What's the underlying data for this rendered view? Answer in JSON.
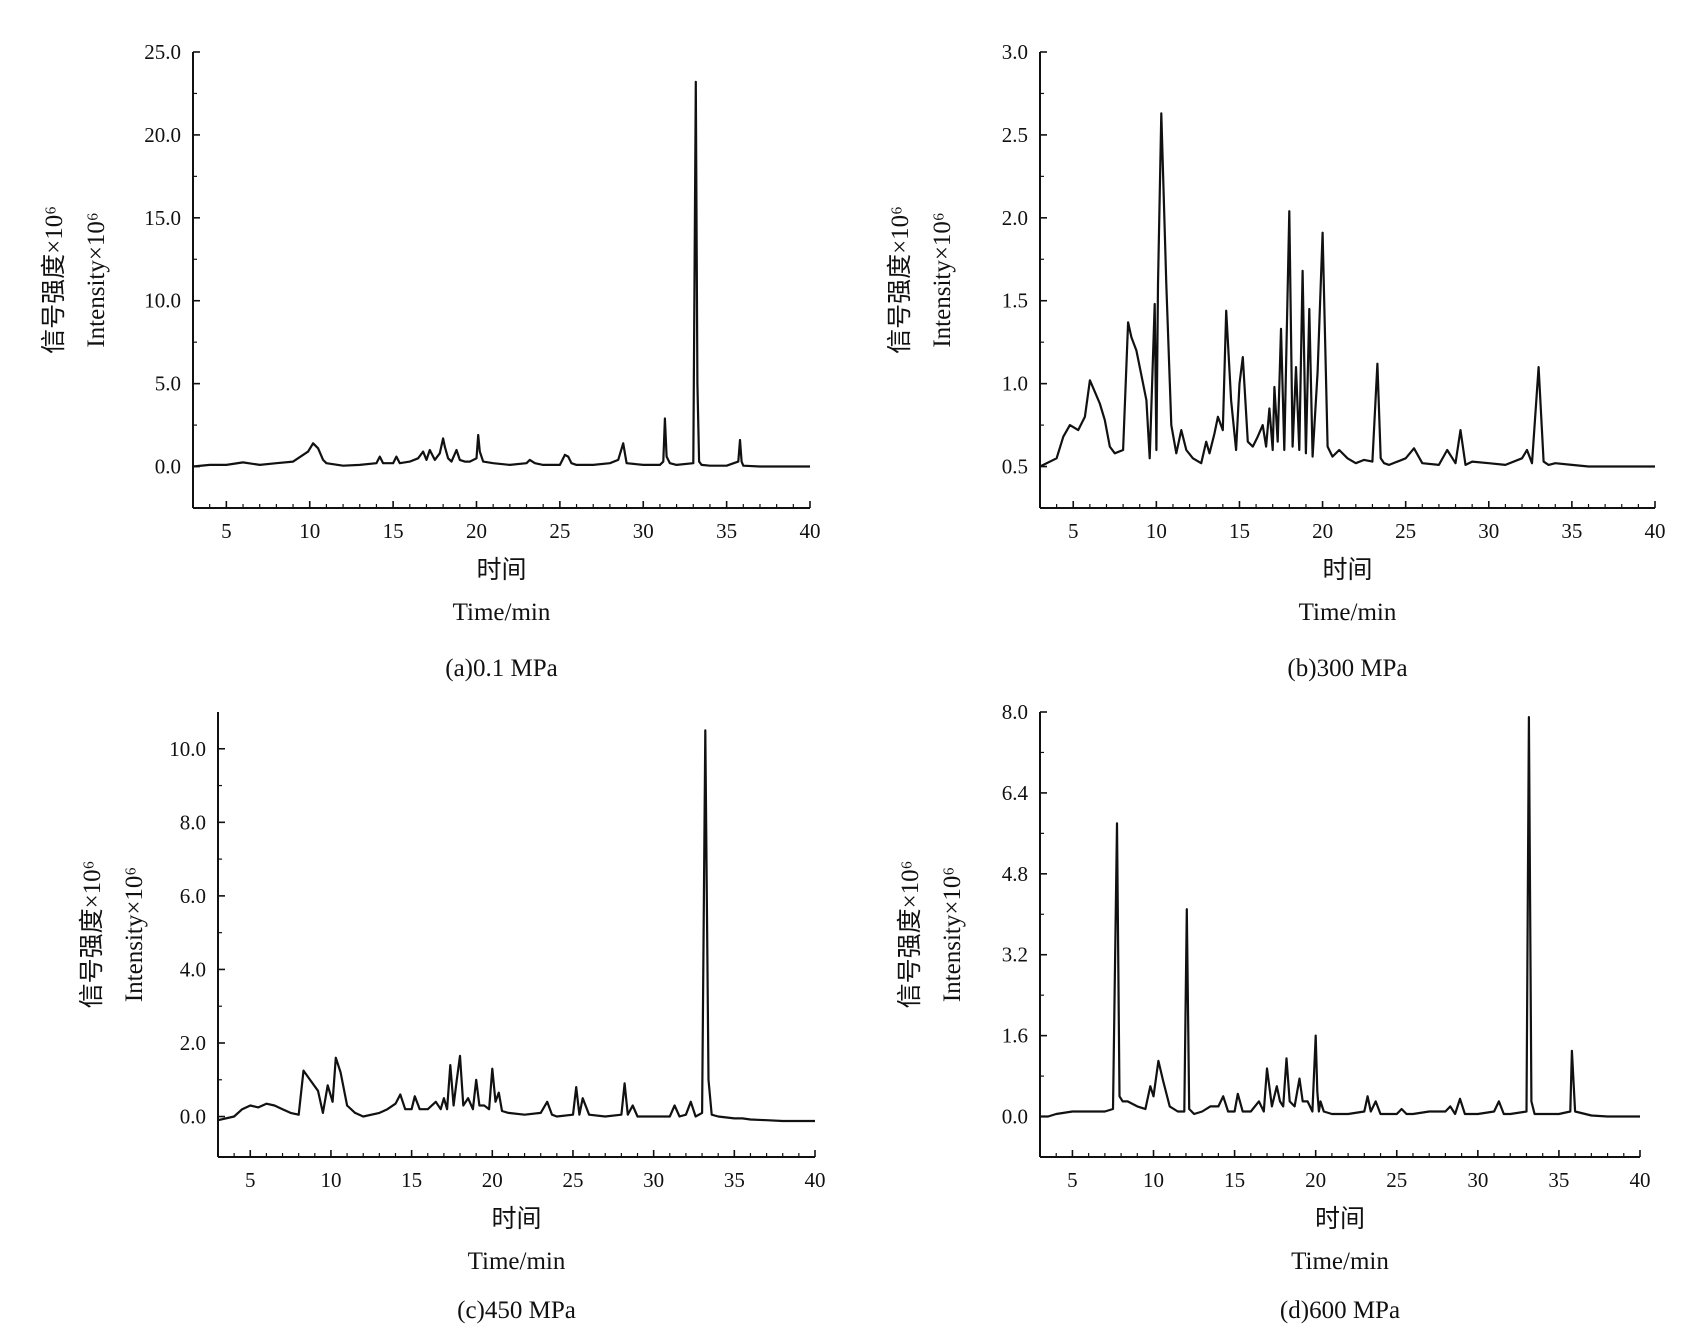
{
  "chart_data": [
    {
      "type": "line",
      "caption": "(a)0.1 MPa",
      "xlabel_zh": "时间",
      "xlabel_en": "Time/min",
      "ylabel_zh": "信号强度×10⁶",
      "ylabel_en": "Intensity×10⁶",
      "xlim": [
        3,
        40
      ],
      "ylim": [
        -2.5,
        25.0
      ],
      "xticks": [
        "5",
        "10",
        "15",
        "20",
        "25",
        "30",
        "35",
        "40"
      ],
      "yticks": [
        "0.0",
        "5.0",
        "10.0",
        "15.0",
        "20.0",
        "25.0"
      ],
      "xtick_values": [
        5,
        10,
        15,
        20,
        25,
        30,
        35,
        40
      ],
      "ytick_values": [
        0,
        5,
        10,
        15,
        20,
        25
      ],
      "grid": false,
      "series": [
        {
          "color": "#111111",
          "x": [
            3,
            4,
            5,
            6,
            7,
            8,
            9,
            9.9,
            10.2,
            10.5,
            10.8,
            11,
            12,
            13,
            14,
            14.2,
            14.4,
            15,
            15.2,
            15.4,
            16,
            16.5,
            16.8,
            17,
            17.2,
            17.5,
            17.8,
            18,
            18.1,
            18.3,
            18.5,
            18.8,
            19,
            19.3,
            19.6,
            20,
            20.1,
            20.2,
            20.4,
            21,
            22,
            23,
            23.2,
            23.5,
            24,
            25,
            25.3,
            25.5,
            25.7,
            26,
            27,
            28,
            28.5,
            28.8,
            29,
            30,
            31,
            31.2,
            31.3,
            31.4,
            31.6,
            32,
            33,
            33.15,
            33.25,
            33.35,
            33.5,
            34,
            35,
            35.7,
            35.8,
            35.9,
            36,
            37,
            38,
            39,
            40
          ],
          "y": [
            0,
            0.1,
            0.1,
            0.25,
            0.1,
            0.2,
            0.3,
            0.9,
            1.4,
            1.1,
            0.4,
            0.2,
            0.05,
            0.1,
            0.2,
            0.6,
            0.2,
            0.2,
            0.6,
            0.2,
            0.3,
            0.5,
            0.9,
            0.4,
            1.0,
            0.4,
            0.8,
            1.7,
            1.2,
            0.5,
            0.3,
            1.0,
            0.4,
            0.3,
            0.3,
            0.5,
            1.9,
            0.9,
            0.3,
            0.2,
            0.1,
            0.2,
            0.4,
            0.2,
            0.1,
            0.1,
            0.7,
            0.6,
            0.2,
            0.1,
            0.1,
            0.2,
            0.4,
            1.4,
            0.2,
            0.1,
            0.1,
            0.3,
            2.9,
            0.6,
            0.2,
            0.1,
            0.2,
            23.2,
            5.0,
            0.3,
            0.1,
            0.05,
            0.05,
            0.3,
            1.6,
            0.3,
            0.05,
            0,
            0,
            0,
            0
          ]
        }
      ]
    },
    {
      "type": "line",
      "caption": "(b)300 MPa",
      "xlabel_zh": "时间",
      "xlabel_en": "Time/min",
      "ylabel_zh": "信号强度×10⁶",
      "ylabel_en": "Intensity×10⁶",
      "xlim": [
        3,
        40
      ],
      "ylim": [
        0.25,
        3.0
      ],
      "xticks": [
        "5",
        "10",
        "15",
        "20",
        "25",
        "30",
        "35",
        "40"
      ],
      "yticks": [
        "0.5",
        "1.0",
        "1.5",
        "2.0",
        "2.5",
        "3.0"
      ],
      "xtick_values": [
        5,
        10,
        15,
        20,
        25,
        30,
        35,
        40
      ],
      "ytick_values": [
        0.5,
        1.0,
        1.5,
        2.0,
        2.5,
        3.0
      ],
      "grid": false,
      "series": [
        {
          "color": "#111111",
          "x": [
            3,
            4,
            4.4,
            4.8,
            5.3,
            5.7,
            6,
            6.3,
            6.6,
            6.9,
            7.2,
            7.5,
            8,
            8.3,
            8.5,
            8.8,
            9.1,
            9.4,
            9.6,
            9.9,
            10.0,
            10.1,
            10.3,
            10.6,
            10.9,
            11.2,
            11.5,
            11.8,
            12.2,
            12.7,
            13.0,
            13.2,
            13.5,
            13.7,
            14.0,
            14.2,
            14.5,
            14.8,
            15.0,
            15.2,
            15.5,
            15.8,
            16.1,
            16.4,
            16.6,
            16.8,
            17.0,
            17.1,
            17.3,
            17.5,
            17.7,
            18.0,
            18.2,
            18.4,
            18.6,
            18.8,
            19.0,
            19.2,
            19.4,
            19.7,
            20.0,
            20.3,
            20.6,
            21,
            21.5,
            22,
            22.5,
            23,
            23.3,
            23.5,
            23.7,
            24,
            25,
            25.5,
            26,
            27,
            27.5,
            28.0,
            28.3,
            28.6,
            29,
            30,
            31,
            32,
            32.3,
            32.6,
            33.0,
            33.3,
            33.6,
            34,
            35,
            36,
            37,
            38,
            39,
            40
          ],
          "y": [
            0.5,
            0.55,
            0.68,
            0.75,
            0.72,
            0.8,
            1.02,
            0.95,
            0.88,
            0.78,
            0.62,
            0.58,
            0.6,
            1.37,
            1.28,
            1.2,
            1.05,
            0.9,
            0.55,
            1.48,
            0.6,
            1.6,
            2.63,
            1.6,
            0.75,
            0.58,
            0.72,
            0.6,
            0.55,
            0.52,
            0.65,
            0.58,
            0.7,
            0.8,
            0.72,
            1.44,
            0.9,
            0.6,
            1.0,
            1.16,
            0.65,
            0.62,
            0.68,
            0.75,
            0.62,
            0.85,
            0.6,
            0.98,
            0.65,
            1.33,
            0.6,
            2.04,
            0.62,
            1.1,
            0.6,
            1.68,
            0.58,
            1.45,
            0.56,
            1.07,
            1.91,
            0.62,
            0.56,
            0.6,
            0.55,
            0.52,
            0.54,
            0.53,
            1.12,
            0.55,
            0.52,
            0.51,
            0.55,
            0.61,
            0.52,
            0.51,
            0.6,
            0.52,
            0.72,
            0.51,
            0.53,
            0.52,
            0.51,
            0.55,
            0.6,
            0.52,
            1.1,
            0.53,
            0.51,
            0.52,
            0.51,
            0.5,
            0.5,
            0.5,
            0.5,
            0.5
          ]
        }
      ]
    },
    {
      "type": "line",
      "caption": "(c)450 MPa",
      "xlabel_zh": "时间",
      "xlabel_en": "Time/min",
      "ylabel_zh": "信号强度×10⁶",
      "ylabel_en": "Intensity×10⁶",
      "xlim": [
        3,
        40
      ],
      "ylim": [
        -1.1,
        11.0
      ],
      "xticks": [
        "5",
        "10",
        "15",
        "20",
        "25",
        "30",
        "35",
        "40"
      ],
      "yticks": [
        "0.0",
        "2.0",
        "4.0",
        "6.0",
        "8.0",
        "10.0"
      ],
      "xtick_values": [
        5,
        10,
        15,
        20,
        25,
        30,
        35,
        40
      ],
      "ytick_values": [
        0,
        2,
        4,
        6,
        8,
        10
      ],
      "grid": false,
      "series": [
        {
          "color": "#111111",
          "x": [
            3,
            4,
            4.5,
            5,
            5.5,
            6,
            6.5,
            7,
            7.5,
            8,
            8.3,
            8.7,
            9.2,
            9.5,
            9.8,
            10.1,
            10.3,
            10.6,
            11,
            11.5,
            12,
            13,
            13.5,
            14.0,
            14.3,
            14.6,
            15.0,
            15.2,
            15.5,
            16,
            16.5,
            16.8,
            17.0,
            17.2,
            17.4,
            17.6,
            17.8,
            18.0,
            18.2,
            18.5,
            18.8,
            19.0,
            19.2,
            19.5,
            19.8,
            20.0,
            20.2,
            20.4,
            20.6,
            21,
            22,
            23,
            23.4,
            23.7,
            24,
            25,
            25.2,
            25.4,
            25.6,
            26,
            27,
            28,
            28.2,
            28.4,
            28.7,
            29,
            30,
            31,
            31.3,
            31.6,
            32,
            32.3,
            32.6,
            33.0,
            33.2,
            33.4,
            33.6,
            34,
            35,
            35.5,
            36,
            37,
            38,
            39,
            40
          ],
          "y": [
            -0.1,
            0.0,
            0.2,
            0.3,
            0.25,
            0.35,
            0.3,
            0.2,
            0.1,
            0.05,
            1.25,
            1.0,
            0.7,
            0.1,
            0.85,
            0.4,
            1.6,
            1.2,
            0.3,
            0.1,
            0.0,
            0.1,
            0.2,
            0.35,
            0.6,
            0.2,
            0.2,
            0.55,
            0.2,
            0.2,
            0.4,
            0.2,
            0.5,
            0.2,
            1.4,
            0.3,
            1.0,
            1.65,
            0.3,
            0.5,
            0.2,
            1.0,
            0.3,
            0.3,
            0.2,
            1.3,
            0.4,
            0.65,
            0.15,
            0.1,
            0.05,
            0.1,
            0.4,
            0.05,
            0.0,
            0.05,
            0.8,
            0.05,
            0.5,
            0.05,
            0.0,
            0.05,
            0.9,
            0.05,
            0.3,
            0.0,
            0.0,
            0.0,
            0.3,
            0.0,
            0.05,
            0.4,
            0.0,
            0.1,
            10.5,
            1.0,
            0.05,
            0.0,
            -0.05,
            -0.05,
            -0.08,
            -0.1,
            -0.12,
            -0.12,
            -0.12
          ]
        }
      ]
    },
    {
      "type": "line",
      "caption": "(d)600 MPa",
      "xlabel_zh": "时间",
      "xlabel_en": "Time/min",
      "ylabel_zh": "信号强度×10⁶",
      "ylabel_en": "Intensity×10⁶",
      "xlim": [
        3,
        40
      ],
      "ylim": [
        -0.8,
        8.0
      ],
      "xticks": [
        "5",
        "10",
        "15",
        "20",
        "25",
        "30",
        "35",
        "40"
      ],
      "yticks": [
        "0.0",
        "1.6",
        "3.2",
        "4.8",
        "6.4",
        "8.0"
      ],
      "xtick_values": [
        5,
        10,
        15,
        20,
        25,
        30,
        35,
        40
      ],
      "ytick_values": [
        0,
        1.6,
        3.2,
        4.8,
        6.4,
        8.0
      ],
      "grid": false,
      "series": [
        {
          "color": "#111111",
          "x": [
            3,
            3.5,
            4,
            5,
            6,
            7,
            7.5,
            7.75,
            7.9,
            8.1,
            8.4,
            9,
            9.5,
            9.8,
            10.0,
            10.3,
            10.6,
            11,
            11.5,
            11.9,
            12.05,
            12.2,
            12.5,
            13,
            13.5,
            14,
            14.3,
            14.6,
            15,
            15.2,
            15.5,
            16,
            16.5,
            16.8,
            17.0,
            17.3,
            17.6,
            17.8,
            18.0,
            18.2,
            18.4,
            18.7,
            19.0,
            19.2,
            19.5,
            19.8,
            20.0,
            20.1,
            20.2,
            20.3,
            20.5,
            21,
            22,
            23,
            23.2,
            23.4,
            23.7,
            24,
            25,
            25.3,
            25.6,
            26,
            27,
            28,
            28.3,
            28.6,
            28.9,
            29.2,
            30,
            31,
            31.3,
            31.6,
            32,
            33,
            33.15,
            33.3,
            33.5,
            34,
            35,
            35.7,
            35.8,
            36,
            37,
            38,
            39,
            40
          ],
          "y": [
            0.0,
            0.0,
            0.05,
            0.1,
            0.1,
            0.1,
            0.15,
            5.8,
            0.4,
            0.3,
            0.3,
            0.2,
            0.15,
            0.6,
            0.4,
            1.1,
            0.7,
            0.2,
            0.1,
            0.1,
            4.1,
            0.15,
            0.05,
            0.1,
            0.2,
            0.2,
            0.4,
            0.1,
            0.1,
            0.45,
            0.1,
            0.1,
            0.3,
            0.1,
            0.95,
            0.2,
            0.6,
            0.3,
            0.2,
            1.15,
            0.3,
            0.2,
            0.75,
            0.3,
            0.3,
            0.1,
            1.6,
            0.5,
            0.1,
            0.3,
            0.1,
            0.05,
            0.05,
            0.1,
            0.4,
            0.1,
            0.3,
            0.05,
            0.05,
            0.15,
            0.05,
            0.05,
            0.1,
            0.1,
            0.2,
            0.05,
            0.35,
            0.05,
            0.05,
            0.1,
            0.3,
            0.05,
            0.05,
            0.1,
            7.9,
            0.3,
            0.05,
            0.05,
            0.05,
            0.1,
            1.3,
            0.1,
            0.02,
            0.0,
            0.0,
            0.0
          ]
        }
      ]
    }
  ]
}
